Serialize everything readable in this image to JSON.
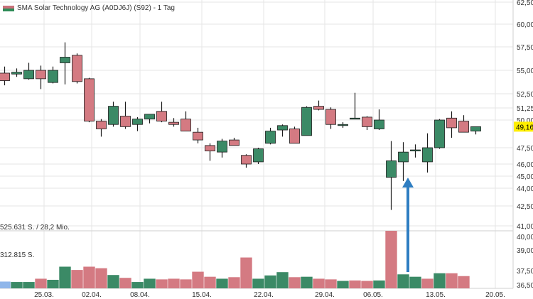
{
  "legend": {
    "label": "SMA Solar Technology AG (A0DJ6J) (S92) - 1 Tag"
  },
  "volume_labels": {
    "upper": "525.631 S. / 28,2 Mio.",
    "lower": "312.815 S."
  },
  "price_marker": "49,16",
  "colors": {
    "up": "#3b8a66",
    "down": "#d47a82",
    "grid": "#e6e6e6",
    "arrow": "#2f7ec2",
    "marker": "#ffee00",
    "first_volume": "#8fb6ea"
  },
  "chart_data": {
    "type": "candlestick",
    "title": "SMA Solar Technology AG (A0DJ6J) (S92) - 1 Tag",
    "price_axis": {
      "ticks": [
        "62,50",
        "60,00",
        "57,50",
        "55,00",
        "52,50",
        "51,25",
        "50,00",
        "47,50",
        "46,00",
        "45,00",
        "44,00",
        "42,50",
        "41,00"
      ],
      "range": [
        41.0,
        62.5
      ]
    },
    "volume_axis": {
      "ticks": [
        "40,00",
        "39,00",
        "37,50",
        "36,50"
      ]
    },
    "x_tick_labels": [
      "25.03.",
      "02.04.",
      "08.04.",
      "15.04.",
      "22.04.",
      "29.04.",
      "06.05.",
      "13.05.",
      "20.05."
    ],
    "candles": [
      {
        "o": 54.7,
        "h": 55.4,
        "l": 53.4,
        "c": 53.9
      },
      {
        "o": 54.6,
        "h": 55.2,
        "l": 54.3,
        "c": 54.8
      },
      {
        "o": 54.1,
        "h": 55.8,
        "l": 54.0,
        "c": 55.0
      },
      {
        "o": 55.0,
        "h": 55.5,
        "l": 53.0,
        "c": 54.1
      },
      {
        "o": 53.7,
        "h": 55.4,
        "l": 53.6,
        "c": 55.0
      },
      {
        "o": 55.8,
        "h": 58.0,
        "l": 53.5,
        "c": 56.4
      },
      {
        "o": 56.6,
        "h": 56.8,
        "l": 53.6,
        "c": 53.8
      },
      {
        "o": 54.1,
        "h": 54.2,
        "l": 49.8,
        "c": 49.9
      },
      {
        "o": 49.9,
        "h": 50.1,
        "l": 48.5,
        "c": 49.2
      },
      {
        "o": 49.6,
        "h": 51.8,
        "l": 49.4,
        "c": 51.4
      },
      {
        "o": 50.4,
        "h": 51.8,
        "l": 49.2,
        "c": 49.4
      },
      {
        "o": 49.6,
        "h": 50.3,
        "l": 49.0,
        "c": 50.1
      },
      {
        "o": 50.1,
        "h": 50.6,
        "l": 49.7,
        "c": 50.6
      },
      {
        "o": 50.9,
        "h": 51.8,
        "l": 49.8,
        "c": 49.9
      },
      {
        "o": 49.8,
        "h": 50.2,
        "l": 49.4,
        "c": 49.6
      },
      {
        "o": 50.1,
        "h": 50.9,
        "l": 49.0,
        "c": 49.0
      },
      {
        "o": 48.9,
        "h": 49.3,
        "l": 47.9,
        "c": 48.2
      },
      {
        "o": 47.7,
        "h": 47.9,
        "l": 46.3,
        "c": 47.2
      },
      {
        "o": 47.1,
        "h": 48.3,
        "l": 46.6,
        "c": 48.1
      },
      {
        "o": 48.2,
        "h": 48.4,
        "l": 47.7,
        "c": 47.7
      },
      {
        "o": 46.8,
        "h": 46.9,
        "l": 45.7,
        "c": 46.0
      },
      {
        "o": 46.2,
        "h": 47.5,
        "l": 46.0,
        "c": 47.4
      },
      {
        "o": 47.9,
        "h": 49.3,
        "l": 47.8,
        "c": 49.0
      },
      {
        "o": 49.1,
        "h": 49.6,
        "l": 48.5,
        "c": 49.5
      },
      {
        "o": 49.2,
        "h": 49.4,
        "l": 47.9,
        "c": 47.9
      },
      {
        "o": 48.6,
        "h": 51.4,
        "l": 48.6,
        "c": 51.3
      },
      {
        "o": 51.4,
        "h": 51.9,
        "l": 51.0,
        "c": 51.1
      },
      {
        "o": 51.1,
        "h": 51.3,
        "l": 49.2,
        "c": 49.6
      },
      {
        "o": 49.5,
        "h": 49.8,
        "l": 49.3,
        "c": 49.6
      },
      {
        "o": 50.2,
        "h": 52.6,
        "l": 50.2,
        "c": 50.2
      },
      {
        "o": 50.3,
        "h": 50.4,
        "l": 49.1,
        "c": 49.4
      },
      {
        "o": 49.2,
        "h": 51.1,
        "l": 49.1,
        "c": 50.0
      },
      {
        "o": 44.9,
        "h": 48.1,
        "l": 42.2,
        "c": 46.3
      },
      {
        "o": 46.2,
        "h": 48.0,
        "l": 44.6,
        "c": 47.1
      },
      {
        "o": 47.3,
        "h": 47.8,
        "l": 46.6,
        "c": 47.3
      },
      {
        "o": 46.2,
        "h": 48.8,
        "l": 45.3,
        "c": 47.5
      },
      {
        "o": 47.5,
        "h": 50.1,
        "l": 47.4,
        "c": 50.0
      },
      {
        "o": 50.2,
        "h": 50.9,
        "l": 48.4,
        "c": 49.3
      },
      {
        "o": 49.9,
        "h": 50.5,
        "l": 48.9,
        "c": 48.9
      },
      {
        "o": 49.0,
        "h": 49.4,
        "l": 48.7,
        "c": 49.4
      }
    ],
    "volume_scale_max": 525631,
    "volumes": [
      {
        "v": 62000,
        "dir": "first"
      },
      {
        "v": 58000,
        "dir": "up"
      },
      {
        "v": 58000,
        "dir": "up"
      },
      {
        "v": 88000,
        "dir": "down"
      },
      {
        "v": 78000,
        "dir": "up"
      },
      {
        "v": 198000,
        "dir": "up"
      },
      {
        "v": 168000,
        "dir": "down"
      },
      {
        "v": 198000,
        "dir": "down"
      },
      {
        "v": 184000,
        "dir": "down"
      },
      {
        "v": 122000,
        "dir": "up"
      },
      {
        "v": 96000,
        "dir": "down"
      },
      {
        "v": 58000,
        "dir": "up"
      },
      {
        "v": 88000,
        "dir": "up"
      },
      {
        "v": 82000,
        "dir": "down"
      },
      {
        "v": 88000,
        "dir": "down"
      },
      {
        "v": 82000,
        "dir": "down"
      },
      {
        "v": 152000,
        "dir": "down"
      },
      {
        "v": 106000,
        "dir": "down"
      },
      {
        "v": 88000,
        "dir": "up"
      },
      {
        "v": 102000,
        "dir": "down"
      },
      {
        "v": 282000,
        "dir": "down"
      },
      {
        "v": 88000,
        "dir": "up"
      },
      {
        "v": 118000,
        "dir": "up"
      },
      {
        "v": 148000,
        "dir": "up"
      },
      {
        "v": 102000,
        "dir": "down"
      },
      {
        "v": 106000,
        "dir": "up"
      },
      {
        "v": 88000,
        "dir": "down"
      },
      {
        "v": 82000,
        "dir": "down"
      },
      {
        "v": 68000,
        "dir": "up"
      },
      {
        "v": 72000,
        "dir": "down"
      },
      {
        "v": 68000,
        "dir": "down"
      },
      {
        "v": 72000,
        "dir": "up"
      },
      {
        "v": 525631,
        "dir": "down"
      },
      {
        "v": 128000,
        "dir": "up"
      },
      {
        "v": 106000,
        "dir": "up"
      },
      {
        "v": 88000,
        "dir": "down"
      },
      {
        "v": 138000,
        "dir": "up"
      },
      {
        "v": 138000,
        "dir": "down"
      },
      {
        "v": 112000,
        "dir": "down"
      },
      {
        "v": 0,
        "dir": "up"
      }
    ]
  }
}
